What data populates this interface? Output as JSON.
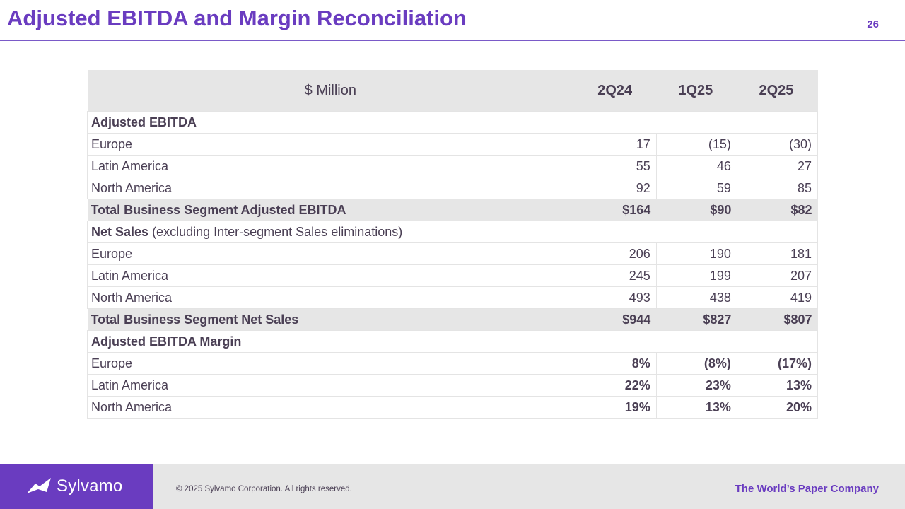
{
  "header": {
    "title": "Adjusted EBITDA and Margin Reconciliation",
    "page_number": "26"
  },
  "table": {
    "columns": [
      "$ Million",
      "2Q24",
      "1Q25",
      "2Q25"
    ],
    "sections": {
      "ebitda": {
        "label": "Adjusted EBITDA",
        "rows": [
          {
            "label": "Europe",
            "values": [
              "17",
              "(15)",
              "(30)"
            ]
          },
          {
            "label": "Latin America",
            "values": [
              "55",
              "46",
              "27"
            ]
          },
          {
            "label": "North America",
            "values": [
              "92",
              "59",
              "85"
            ]
          }
        ],
        "total": {
          "label": "Total Business Segment Adjusted EBITDA",
          "values": [
            "$164",
            "$90",
            "$82"
          ]
        }
      },
      "net_sales": {
        "label": "Net Sales",
        "note": "(excluding Inter-segment Sales eliminations)",
        "rows": [
          {
            "label": "Europe",
            "values": [
              "206",
              "190",
              "181"
            ]
          },
          {
            "label": "Latin America",
            "values": [
              "245",
              "199",
              "207"
            ]
          },
          {
            "label": "North America",
            "values": [
              "493",
              "438",
              "419"
            ]
          }
        ],
        "total": {
          "label": "Total Business Segment Net Sales",
          "values": [
            "$944",
            "$827",
            "$807"
          ]
        }
      },
      "margin": {
        "label": "Adjusted EBITDA Margin",
        "rows": [
          {
            "label": "Europe",
            "values": [
              "8%",
              "(8%)",
              "(17%)"
            ]
          },
          {
            "label": "Latin America",
            "values": [
              "22%",
              "23%",
              "13%"
            ]
          },
          {
            "label": "North America",
            "values": [
              "19%",
              "13%",
              "20%"
            ]
          }
        ]
      }
    }
  },
  "footer": {
    "logo_text": "Sylvamo",
    "logo_icon": "sylvamo-logo-icon",
    "copyright": "© 2025 Sylvamo Corporation. All rights reserved.",
    "tagline": "The World’s Paper Company"
  },
  "colors": {
    "brand_purple": "#6a3cc0",
    "header_fill": "#e6e6e6",
    "text": "#4a3f54"
  }
}
